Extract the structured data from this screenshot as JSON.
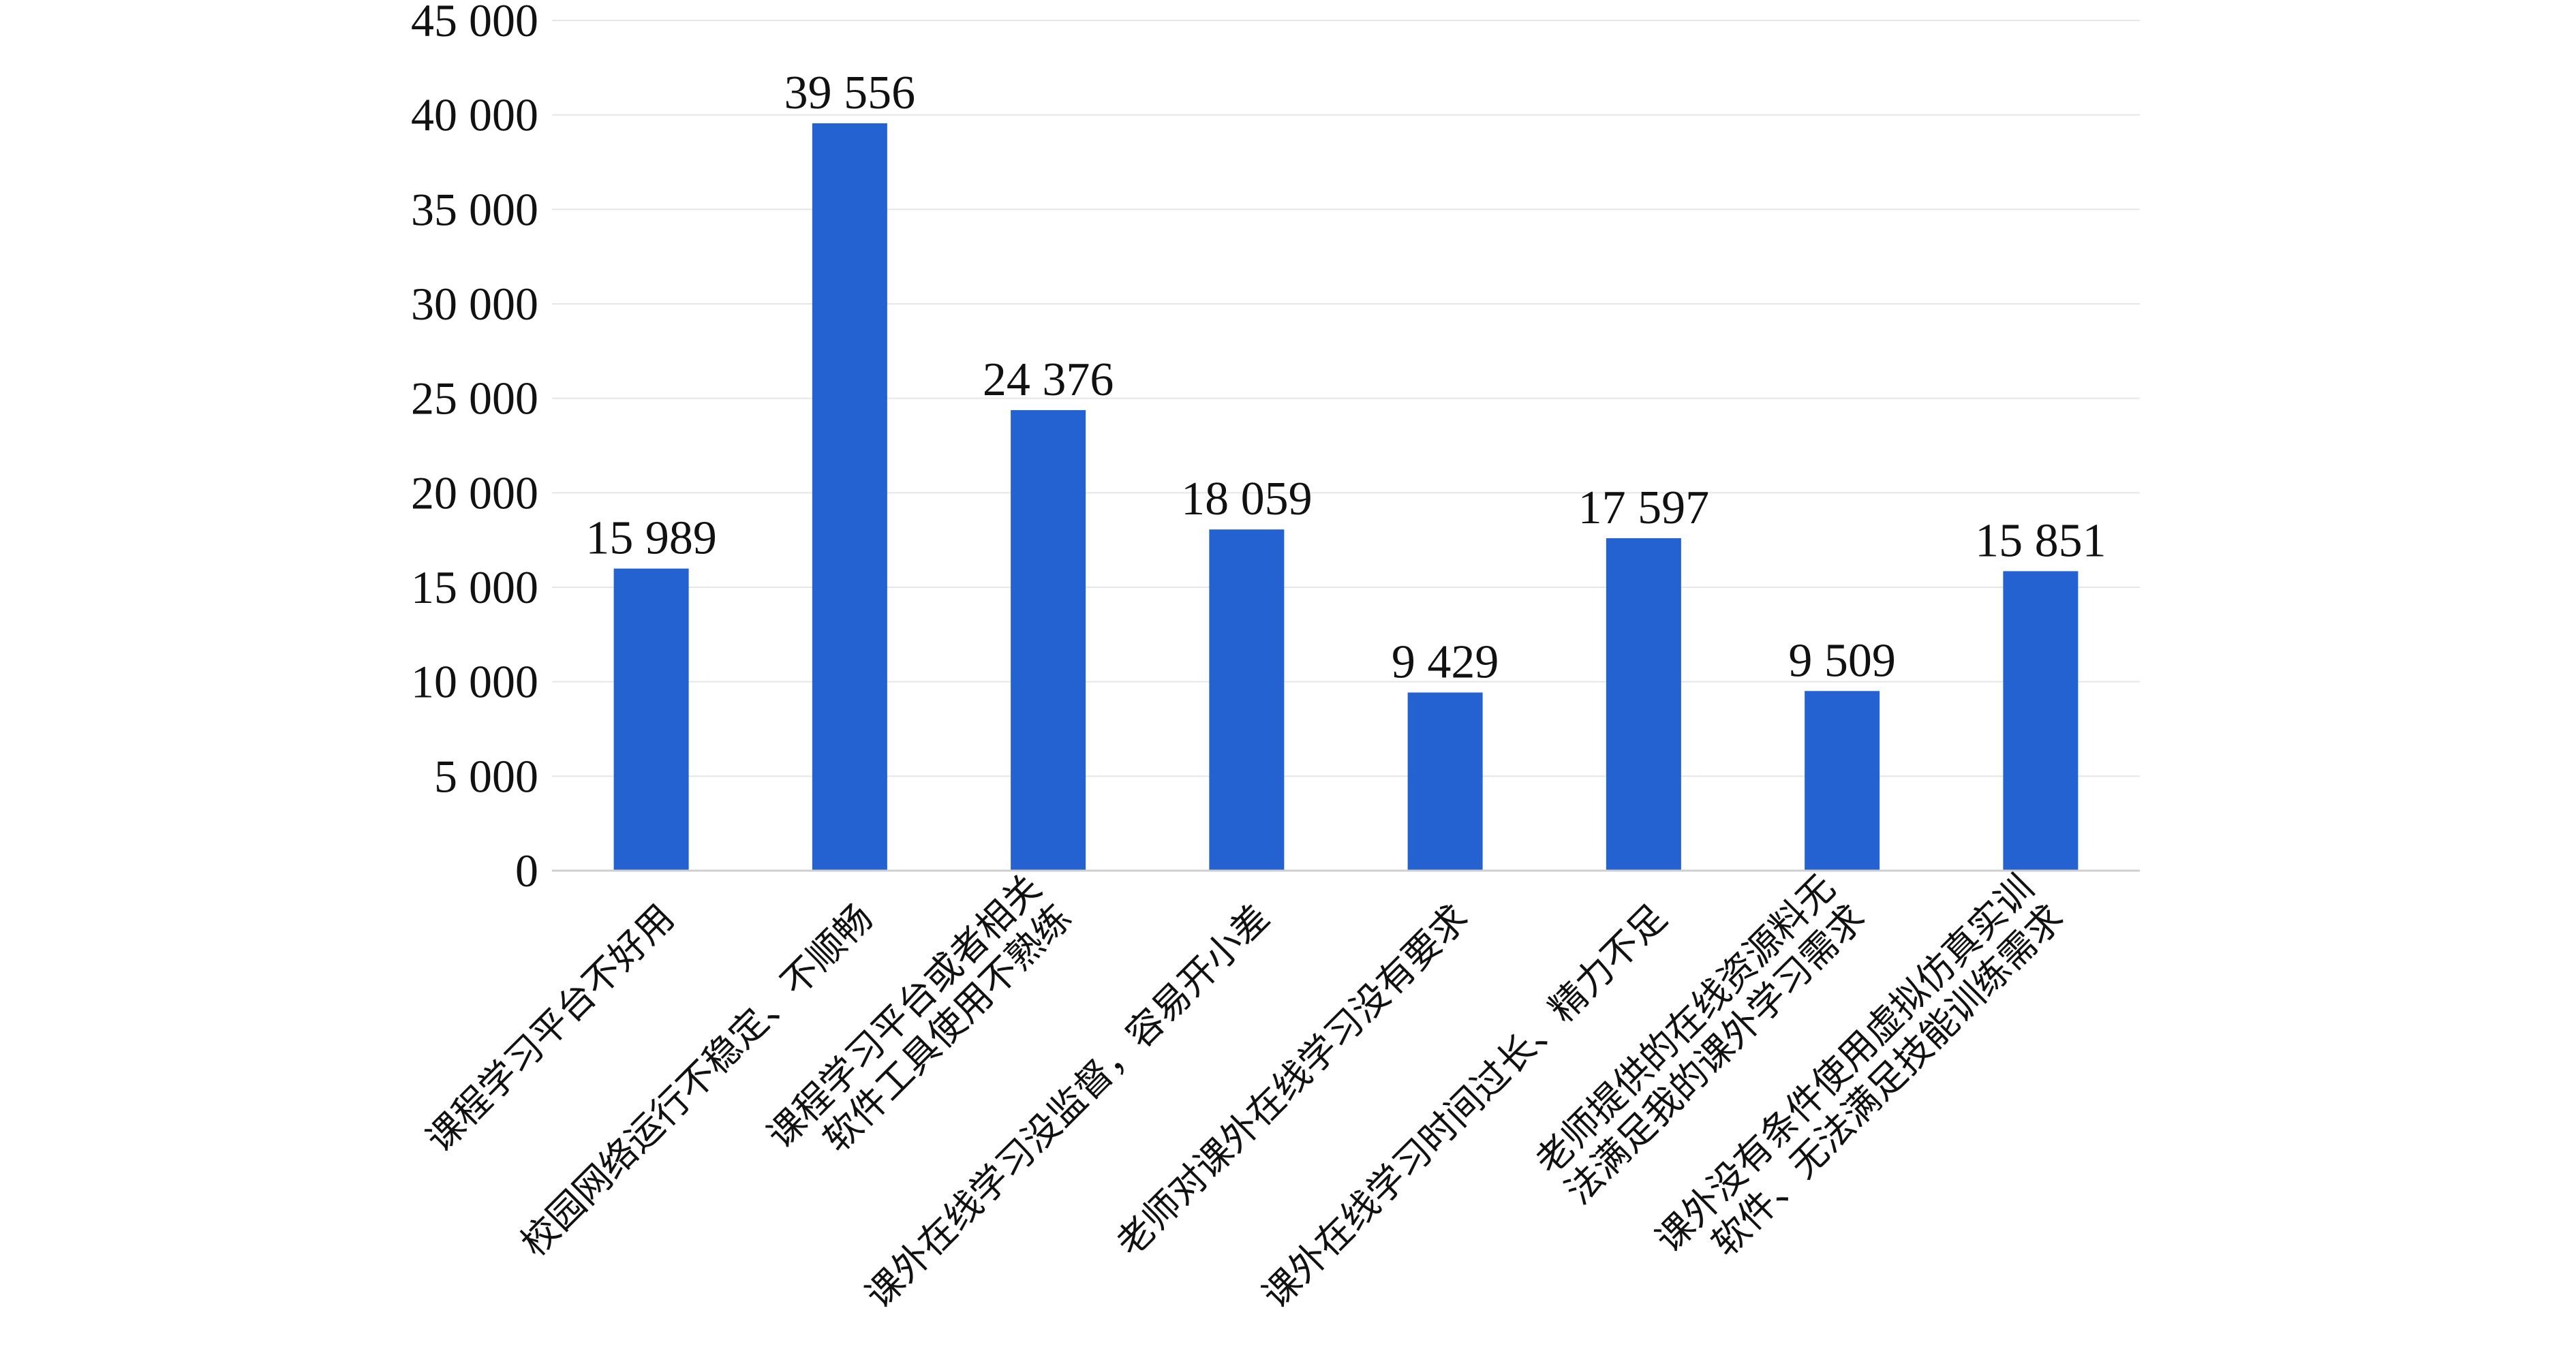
{
  "chart_data": {
    "type": "bar",
    "categories": [
      [
        "课程学习平台不好用"
      ],
      [
        "校园网络运行不稳定、不顺畅"
      ],
      [
        "课程学习平台或者相关",
        "软件工具使用不熟练"
      ],
      [
        "课外在线学习没监督，容易开小差"
      ],
      [
        "老师对课外在线学习没有要求"
      ],
      [
        "课外在线学习时间过长、精力不足"
      ],
      [
        "老师提供的在线资源料无",
        "法满足我的课外学习需求"
      ],
      [
        "课外没有条件使用虚拟仿真实训",
        "软件、无法满足技能训练需求"
      ]
    ],
    "values": [
      15989,
      39556,
      24376,
      18059,
      9429,
      17597,
      9509,
      15851
    ],
    "value_labels": [
      "15 989",
      "39 556",
      "24 376",
      "18 059",
      "9 429",
      "17 597",
      "9 509",
      "15 851"
    ],
    "yticks": [
      0,
      5000,
      10000,
      15000,
      20000,
      25000,
      30000,
      35000,
      40000,
      45000
    ],
    "ytick_labels": [
      "0",
      "5 000",
      "10 000",
      "15 000",
      "20 000",
      "25 000",
      "30 000",
      "35 000",
      "40 000",
      "45 000"
    ],
    "ylim": [
      0,
      45000
    ],
    "grid": true,
    "bar_color": "#2462d2",
    "title": "",
    "xlabel": "",
    "ylabel": ""
  }
}
